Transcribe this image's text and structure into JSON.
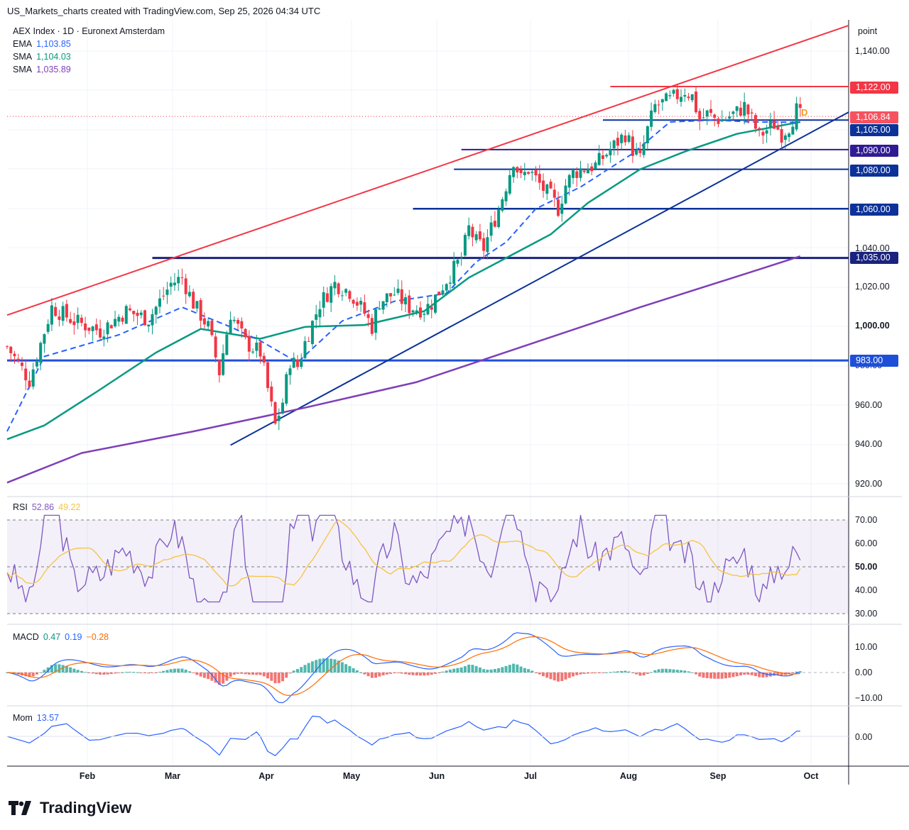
{
  "header": "US_Markets_charts created with TradingView.com, Sep 25, 2026 04:34 UTC",
  "legend": {
    "title": "AEX Index · 1D · Euronext Amsterdam",
    "lines": [
      {
        "label": "EMA",
        "value": "1,103.85",
        "color": "#2962ff"
      },
      {
        "label": "SMA",
        "value": "1,104.03",
        "color": "#089981"
      },
      {
        "label": "SMA",
        "value": "1,035.89",
        "color": "#7e3fb8"
      }
    ]
  },
  "axis_unit": "point",
  "price_ticks": [
    "1,140.00",
    "1,040.00",
    "1,020.00",
    "1,000.00",
    "980.00",
    "960.00",
    "940.00",
    "920.00"
  ],
  "price_tags": [
    {
      "label": "1,122.00",
      "color": "#f23645"
    },
    {
      "label": "1,106.84",
      "color": "#f7525f"
    },
    {
      "label": "1,105.00",
      "color": "#0c3299"
    },
    {
      "label": "1,090.00",
      "color": "#311b92"
    },
    {
      "label": "1,080.00",
      "color": "#0c3299"
    },
    {
      "label": "1,060.00",
      "color": "#0c3299"
    },
    {
      "label": "1,035.00",
      "color": "#1a237e"
    },
    {
      "label": "983.00",
      "color": "#1e4fd8"
    }
  ],
  "x_labels": [
    "Feb",
    "Mar",
    "Apr",
    "May",
    "Jun",
    "Jul",
    "Aug",
    "Sep",
    "Oct"
  ],
  "marker": "D",
  "rsi": {
    "label": "RSI",
    "v1": "52.86",
    "v2": "49.22",
    "ticks": [
      "70.00",
      "60.00",
      "50.00",
      "40.00",
      "30.00"
    ]
  },
  "macd": {
    "label": "MACD",
    "v1": "0.47",
    "v2": "0.19",
    "v3": "−0.28",
    "ticks": [
      "10.00",
      "0.00",
      "−10.00"
    ]
  },
  "mom": {
    "label": "Mom",
    "v1": "13.57",
    "ticks": [
      "0.00"
    ]
  },
  "brand": "TradingView",
  "chart_data": {
    "type": "candlestick",
    "title": "AEX Index · 1D · Euronext Amsterdam",
    "x": [
      "Feb",
      "Mar",
      "Apr",
      "May",
      "Jun",
      "Jul",
      "Aug",
      "Sep",
      "Oct"
    ],
    "ylim": [
      913,
      1153
    ],
    "close_path": [
      [
        0,
        990
      ],
      [
        6,
        973
      ],
      [
        12,
        1010
      ],
      [
        18,
        1003
      ],
      [
        25,
        998
      ],
      [
        32,
        1008
      ],
      [
        38,
        1004
      ],
      [
        44,
        1022
      ],
      [
        47,
        1025
      ],
      [
        50,
        1012
      ],
      [
        54,
        1000
      ],
      [
        57,
        977
      ],
      [
        60,
        1007
      ],
      [
        64,
        992
      ],
      [
        68,
        987
      ],
      [
        72,
        950
      ],
      [
        74,
        962
      ],
      [
        76,
        983
      ],
      [
        78,
        980
      ],
      [
        80,
        992
      ],
      [
        84,
        1012
      ],
      [
        88,
        1022
      ],
      [
        92,
        1018
      ],
      [
        96,
        1007
      ],
      [
        98,
        1000
      ],
      [
        100,
        1013
      ],
      [
        104,
        1017
      ],
      [
        108,
        1010
      ],
      [
        112,
        1009
      ],
      [
        114,
        1012
      ],
      [
        118,
        1024
      ],
      [
        122,
        1035
      ],
      [
        124,
        1050
      ],
      [
        126,
        1043
      ],
      [
        128,
        1040
      ],
      [
        130,
        1050
      ],
      [
        132,
        1060
      ],
      [
        134,
        1072
      ],
      [
        136,
        1085
      ],
      [
        138,
        1075
      ],
      [
        140,
        1080
      ],
      [
        142,
        1075
      ],
      [
        144,
        1070
      ],
      [
        146,
        1066
      ],
      [
        148,
        1060
      ],
      [
        150,
        1072
      ],
      [
        152,
        1078
      ],
      [
        154,
        1080
      ],
      [
        158,
        1082
      ],
      [
        162,
        1090
      ],
      [
        166,
        1098
      ],
      [
        168,
        1090
      ],
      [
        170,
        1085
      ],
      [
        172,
        1100
      ],
      [
        174,
        1112
      ],
      [
        178,
        1115
      ],
      [
        182,
        1120
      ],
      [
        184,
        1117
      ],
      [
        186,
        1105
      ],
      [
        188,
        1108
      ],
      [
        190,
        1106
      ],
      [
        192,
        1105
      ],
      [
        196,
        1109
      ],
      [
        198,
        1112
      ],
      [
        200,
        1105
      ],
      [
        202,
        1097
      ],
      [
        204,
        1100
      ],
      [
        206,
        1103
      ],
      [
        208,
        1098
      ],
      [
        210,
        1102
      ],
      [
        212,
        1110
      ],
      [
        213,
        1106.84
      ]
    ],
    "ema": [
      [
        0,
        947
      ],
      [
        10,
        985
      ],
      [
        30,
        996
      ],
      [
        47,
        1010
      ],
      [
        60,
        1000
      ],
      [
        68,
        993
      ],
      [
        78,
        982
      ],
      [
        90,
        1003
      ],
      [
        104,
        1013
      ],
      [
        118,
        1017
      ],
      [
        126,
        1033
      ],
      [
        134,
        1043
      ],
      [
        142,
        1060
      ],
      [
        154,
        1071
      ],
      [
        168,
        1088
      ],
      [
        178,
        1104
      ],
      [
        190,
        1105
      ],
      [
        200,
        1104
      ],
      [
        213,
        1103.85
      ]
    ],
    "sma50": [
      [
        0,
        943
      ],
      [
        10,
        950
      ],
      [
        24,
        967
      ],
      [
        40,
        987
      ],
      [
        52,
        999
      ],
      [
        68,
        994
      ],
      [
        80,
        1000
      ],
      [
        96,
        1001
      ],
      [
        112,
        1008
      ],
      [
        124,
        1025
      ],
      [
        134,
        1035
      ],
      [
        146,
        1047
      ],
      [
        156,
        1063
      ],
      [
        170,
        1080
      ],
      [
        182,
        1089
      ],
      [
        196,
        1098
      ],
      [
        213,
        1104.03
      ]
    ],
    "sma200": [
      [
        0,
        921
      ],
      [
        20,
        936
      ],
      [
        50,
        947
      ],
      [
        80,
        959
      ],
      [
        110,
        972
      ],
      [
        140,
        991
      ],
      [
        170,
        1010
      ],
      [
        200,
        1028
      ],
      [
        213,
        1035.89
      ]
    ],
    "levels": [
      {
        "value": 1122.0,
        "from": 162
      },
      {
        "value": 1105.0,
        "from": 160
      },
      {
        "value": 1090.0,
        "from": 122
      },
      {
        "value": 1080.0,
        "from": 120
      },
      {
        "value": 1060.0,
        "from": 109
      },
      {
        "value": 1035.0,
        "from": 39
      },
      {
        "value": 983.0,
        "from": 0
      }
    ],
    "trendlines": [
      {
        "name": "upper",
        "p1": [
          0,
          1006
        ],
        "p2": [
          226,
          1153
        ]
      },
      {
        "name": "lower",
        "p1": [
          60,
          940
        ],
        "p2": [
          226,
          1109
        ]
      }
    ],
    "rsi": {
      "ylim": [
        25,
        75
      ],
      "series_end": [
        52.86,
        49.22
      ]
    },
    "macd": {
      "ylim": [
        -12,
        14
      ],
      "macd_end": 0.47,
      "signal_end": 0.19,
      "hist_end": -0.28
    },
    "mom": {
      "series_end": 13.57
    }
  }
}
